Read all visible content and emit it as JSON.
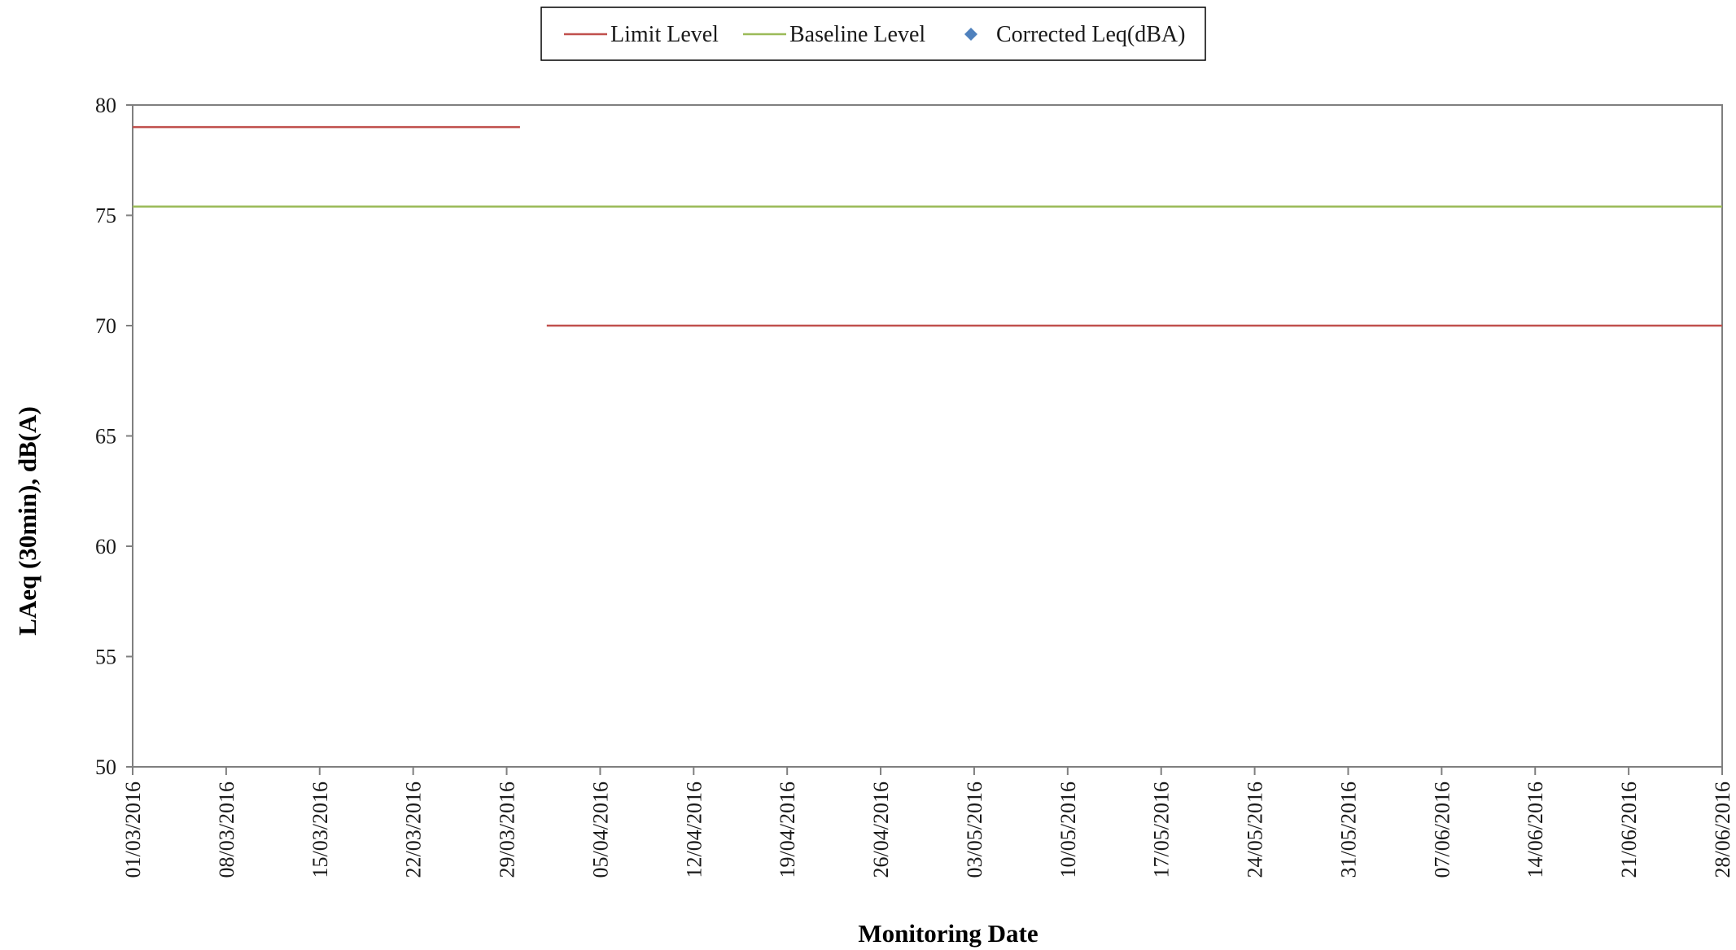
{
  "chart_data": {
    "type": "line",
    "title": "",
    "xlabel": "Monitoring Date",
    "ylabel": "LAeq (30min), dB(A)",
    "ylim": [
      50,
      80
    ],
    "yticks": [
      50,
      55,
      60,
      65,
      70,
      75,
      80
    ],
    "xlim": [
      "01/03/2016",
      "28/06/2016"
    ],
    "xticks": [
      "01/03/2016",
      "08/03/2016",
      "15/03/2016",
      "22/03/2016",
      "29/03/2016",
      "05/04/2016",
      "12/04/2016",
      "19/04/2016",
      "26/04/2016",
      "03/05/2016",
      "10/05/2016",
      "17/05/2016",
      "24/05/2016",
      "31/05/2016",
      "07/06/2016",
      "14/06/2016",
      "21/06/2016",
      "28/06/2016"
    ],
    "grid": false,
    "legend_position": "top-center",
    "series": [
      {
        "name": "Limit Level",
        "color": "#c0504d",
        "marker": "line",
        "segments": [
          [
            {
              "x": "01/03/2016",
              "y": 79
            },
            {
              "x": "30/03/2016",
              "y": 79
            }
          ],
          [
            {
              "x": "01/04/2016",
              "y": 70
            },
            {
              "x": "28/06/2016",
              "y": 70
            }
          ]
        ]
      },
      {
        "name": "Baseline Level",
        "color": "#9bbb59",
        "marker": "line",
        "segments": [
          [
            {
              "x": "01/03/2016",
              "y": 75.4
            },
            {
              "x": "28/06/2016",
              "y": 75.4
            }
          ]
        ]
      },
      {
        "name": "Corrected Leq(dBA)",
        "color": "#4f81bd",
        "marker": "diamond",
        "segments": []
      }
    ]
  }
}
